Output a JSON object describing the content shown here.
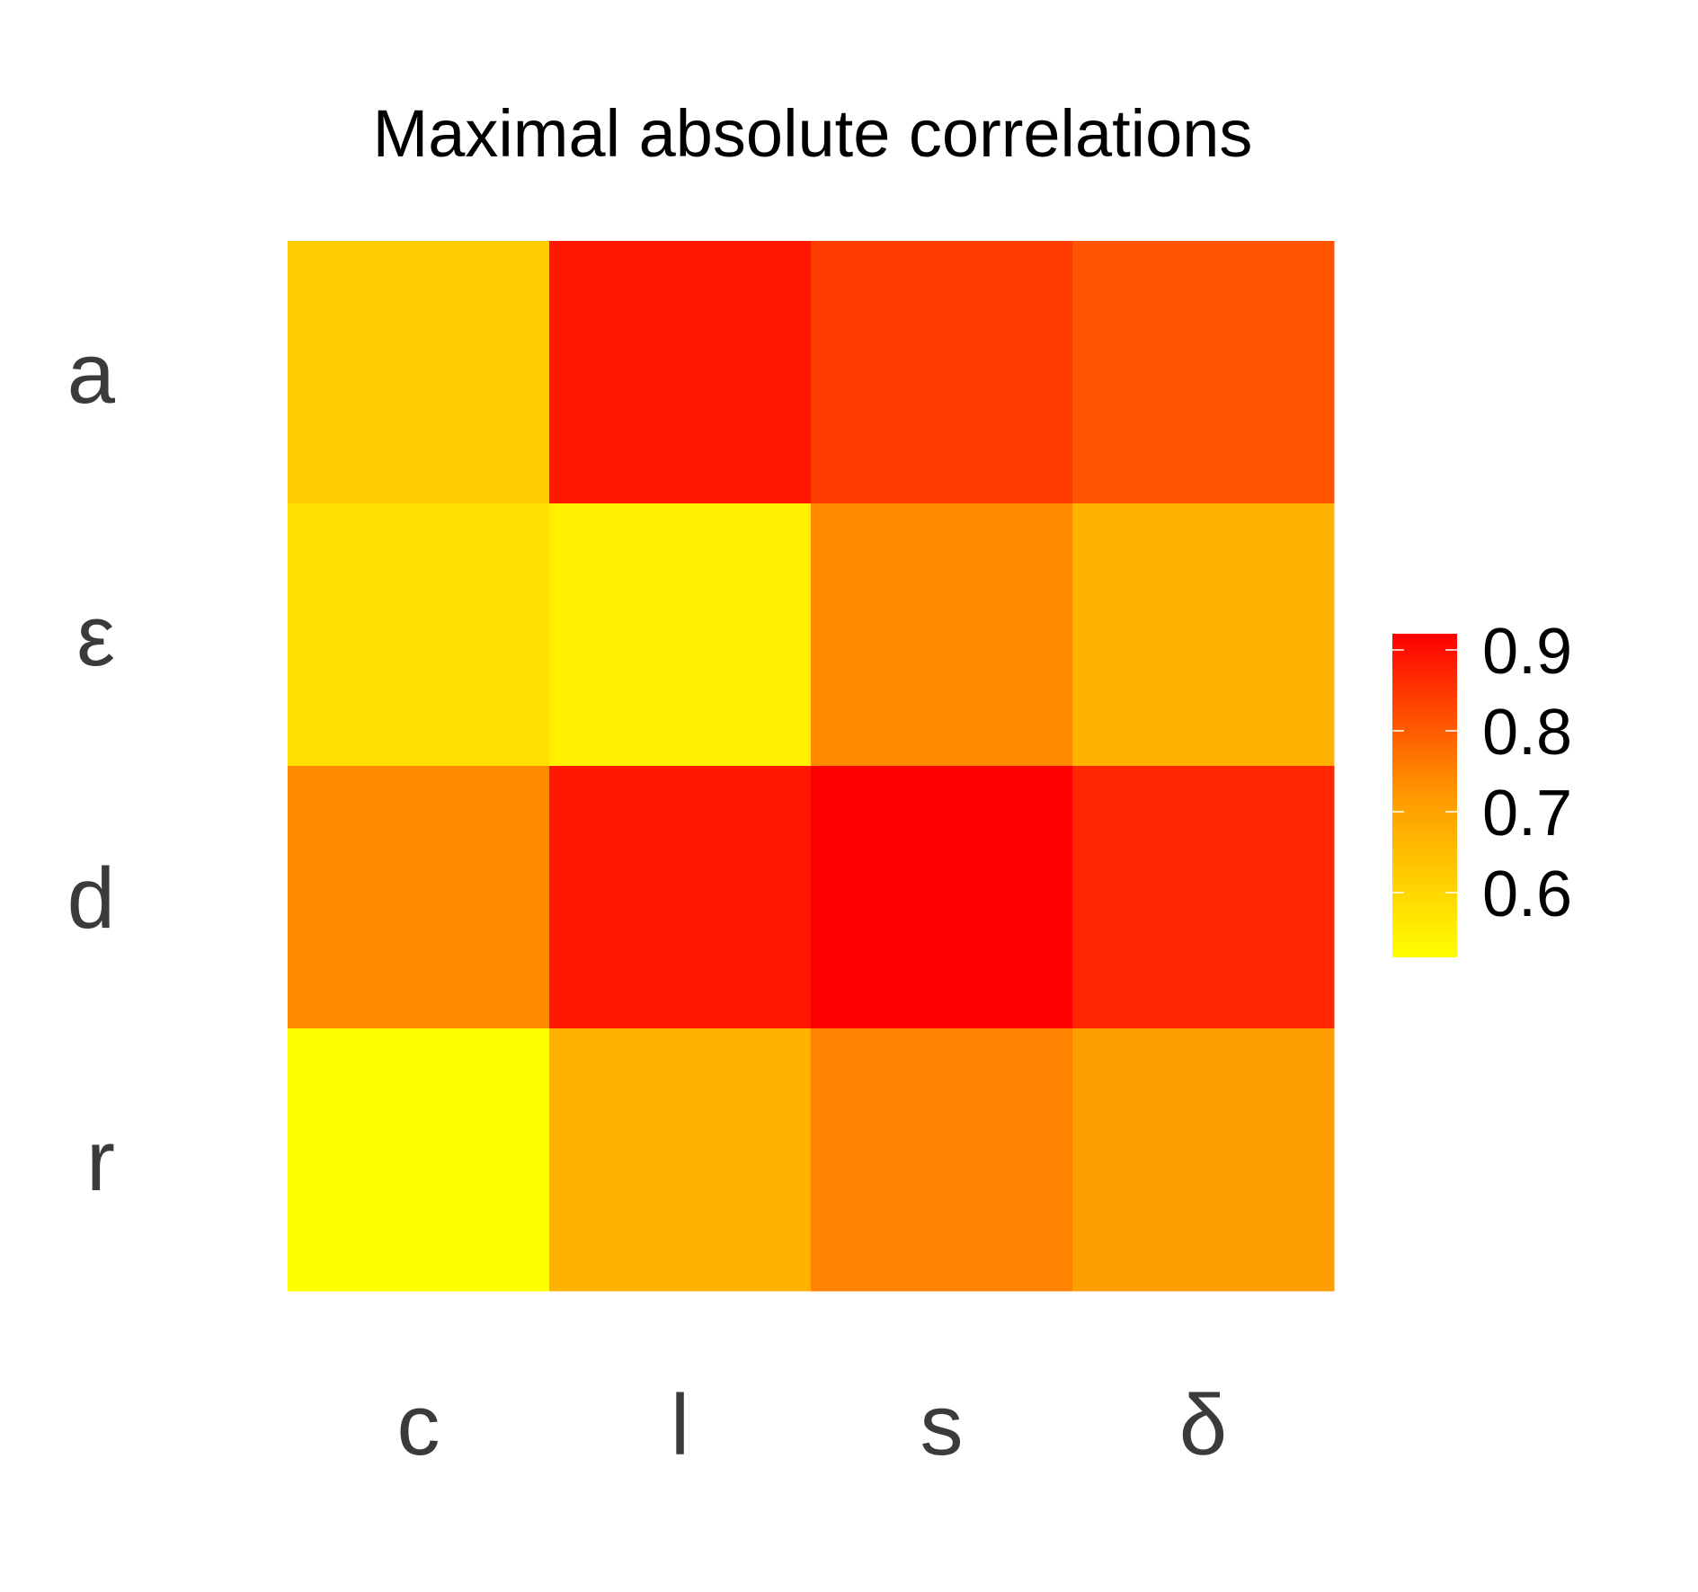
{
  "chart_data": {
    "type": "heatmap",
    "title": "Maximal absolute correlations",
    "xlabel": "",
    "ylabel": "",
    "x_categories": [
      "c",
      "l",
      "s",
      "δ"
    ],
    "y_categories": [
      "a",
      "ε",
      "d",
      "r"
    ],
    "values": [
      [
        0.62,
        0.89,
        0.84,
        0.81
      ],
      [
        0.58,
        0.55,
        0.74,
        0.67
      ],
      [
        0.74,
        0.89,
        0.92,
        0.87
      ],
      [
        0.52,
        0.67,
        0.75,
        0.71
      ]
    ],
    "colorbar": {
      "range": [
        0.52,
        0.92
      ],
      "ticks": [
        0.6,
        0.7,
        0.8,
        0.9
      ],
      "tick_labels": [
        "0.6",
        "0.7",
        "0.8",
        "0.9"
      ],
      "low_color": "#ffff00",
      "high_color": "#ff0000",
      "placement": "right"
    },
    "grid": false
  }
}
